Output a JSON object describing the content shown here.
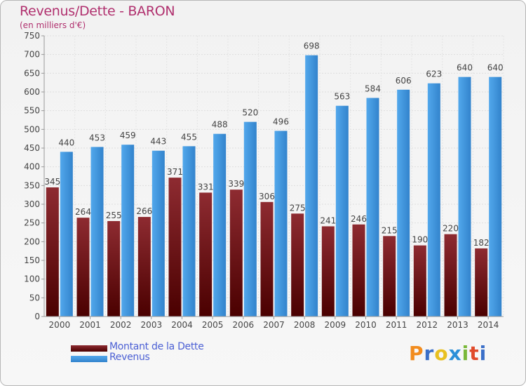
{
  "header": {
    "title": "Revenus/Dette - BARON",
    "subtitle": "(en milliers d'€)"
  },
  "colors": {
    "dette": "#6e0d13",
    "revenus": "#3f97dc",
    "title": "#b0306e",
    "legend_text": "#4c60d4"
  },
  "legend": {
    "dette_label": "Montant de la Dette",
    "revenus_label": "Revenus"
  },
  "logo": {
    "letters": [
      "P",
      "r",
      "o",
      "x",
      "i",
      "t",
      "i"
    ],
    "colors": [
      "#f28c1e",
      "#3a6fc8",
      "#e8c020",
      "#2a8fd8",
      "#7ab83a",
      "#e04a2a",
      "#3a6fc8"
    ]
  },
  "chart_data": {
    "type": "bar",
    "title": "Revenus/Dette - BARON",
    "subtitle": "(en milliers d'€)",
    "categories": [
      "2000",
      "2001",
      "2002",
      "2003",
      "2004",
      "2005",
      "2006",
      "2007",
      "2008",
      "2009",
      "2010",
      "2011",
      "2012",
      "2013",
      "2014"
    ],
    "series": [
      {
        "name": "Montant de la Dette",
        "values": [
          345,
          264,
          255,
          266,
          371,
          331,
          339,
          306,
          275,
          241,
          246,
          215,
          190,
          220,
          182
        ]
      },
      {
        "name": "Revenus",
        "values": [
          440,
          453,
          459,
          443,
          455,
          488,
          520,
          496,
          698,
          563,
          584,
          606,
          623,
          640,
          640
        ]
      }
    ],
    "ylim": [
      0,
      750
    ],
    "yticks": [
      0,
      50,
      100,
      150,
      200,
      250,
      300,
      350,
      400,
      450,
      500,
      550,
      600,
      650,
      700,
      750
    ],
    "grid": true,
    "legend_position": "bottom-left"
  }
}
